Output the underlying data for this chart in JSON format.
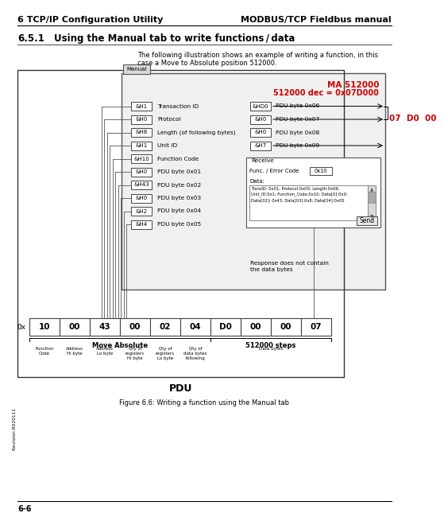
{
  "title_left": "6 TCP/IP Configuration Utility",
  "title_right": "MODBUS/TCP Fieldbus manual",
  "section": "6.5.1",
  "section_title": "Using the Manual tab to write functions / data",
  "intro_line1": "The following illustration shows an example of writing a function, in this",
  "intro_line2": "case a Move to Absolute position 512000.",
  "red_label1": "MA 512000",
  "red_label2": "512000 dec = 0x07D000",
  "red_bytes": "07  D0  00",
  "manual_tab": "Manual",
  "left_rows": [
    [
      "&H1",
      "Transaction ID"
    ],
    [
      "&H0",
      "Protocol"
    ],
    [
      "&H8",
      "Length (of following bytes)"
    ],
    [
      "&H1",
      "Unit ID"
    ],
    [
      "&H10",
      "Function Code"
    ],
    [
      "&H0",
      "PDU byte 0x01"
    ],
    [
      "&H43",
      "PDU byte 0x02"
    ],
    [
      "&H0",
      "PDU byte 0x03"
    ],
    [
      "&H2",
      "PDU byte 0x04"
    ],
    [
      "&H4",
      "PDU byte 0x05"
    ]
  ],
  "right_rows": [
    [
      "&HD0",
      "PDU byte 0x06"
    ],
    [
      "&H0",
      "PDU byte 0x07"
    ],
    [
      "&H0",
      "PDU byte 0x08"
    ],
    [
      "&H7",
      "PDU byte 0x09"
    ]
  ],
  "receive_label": "Receive",
  "func_error_label": "Func. / Error Code",
  "func_error_value": "0x10",
  "data_label": "Data:",
  "data_text": "TransID: 0x01; Protocol:0x00; Length:0x06;\nUnit_ID:0x1; Function_Code:0x10; Data[0]:0x0;\nData[02]: 0x43; Data[03]:0x8; Data[04]:0x0S",
  "send_btn": "Send",
  "response_text": "Response does not contain\nthe data bytes",
  "pdu_hex": [
    "10",
    "00",
    "43",
    "00",
    "02",
    "04",
    "D0",
    "00",
    "00",
    "07"
  ],
  "pdu_label1": "Move Absolute",
  "pdu_label2": "512000 steps",
  "pdu_sublabels": [
    "Function\nCode",
    "Address\nHi byte",
    "Address\nLo byte",
    "Qty of\nregisters\nHi byte",
    "Qty of\nregisters\nLo byte",
    "Qty of\ndata bytes\nfollowing",
    "Data bytes"
  ],
  "pdu_title": "PDU",
  "figure_caption": "Figure 6.6: Writing a function using the Manual tab",
  "revision": "Revision R020111",
  "page": "6-6",
  "bg_color": "#ffffff",
  "red_color": "#cc0000"
}
